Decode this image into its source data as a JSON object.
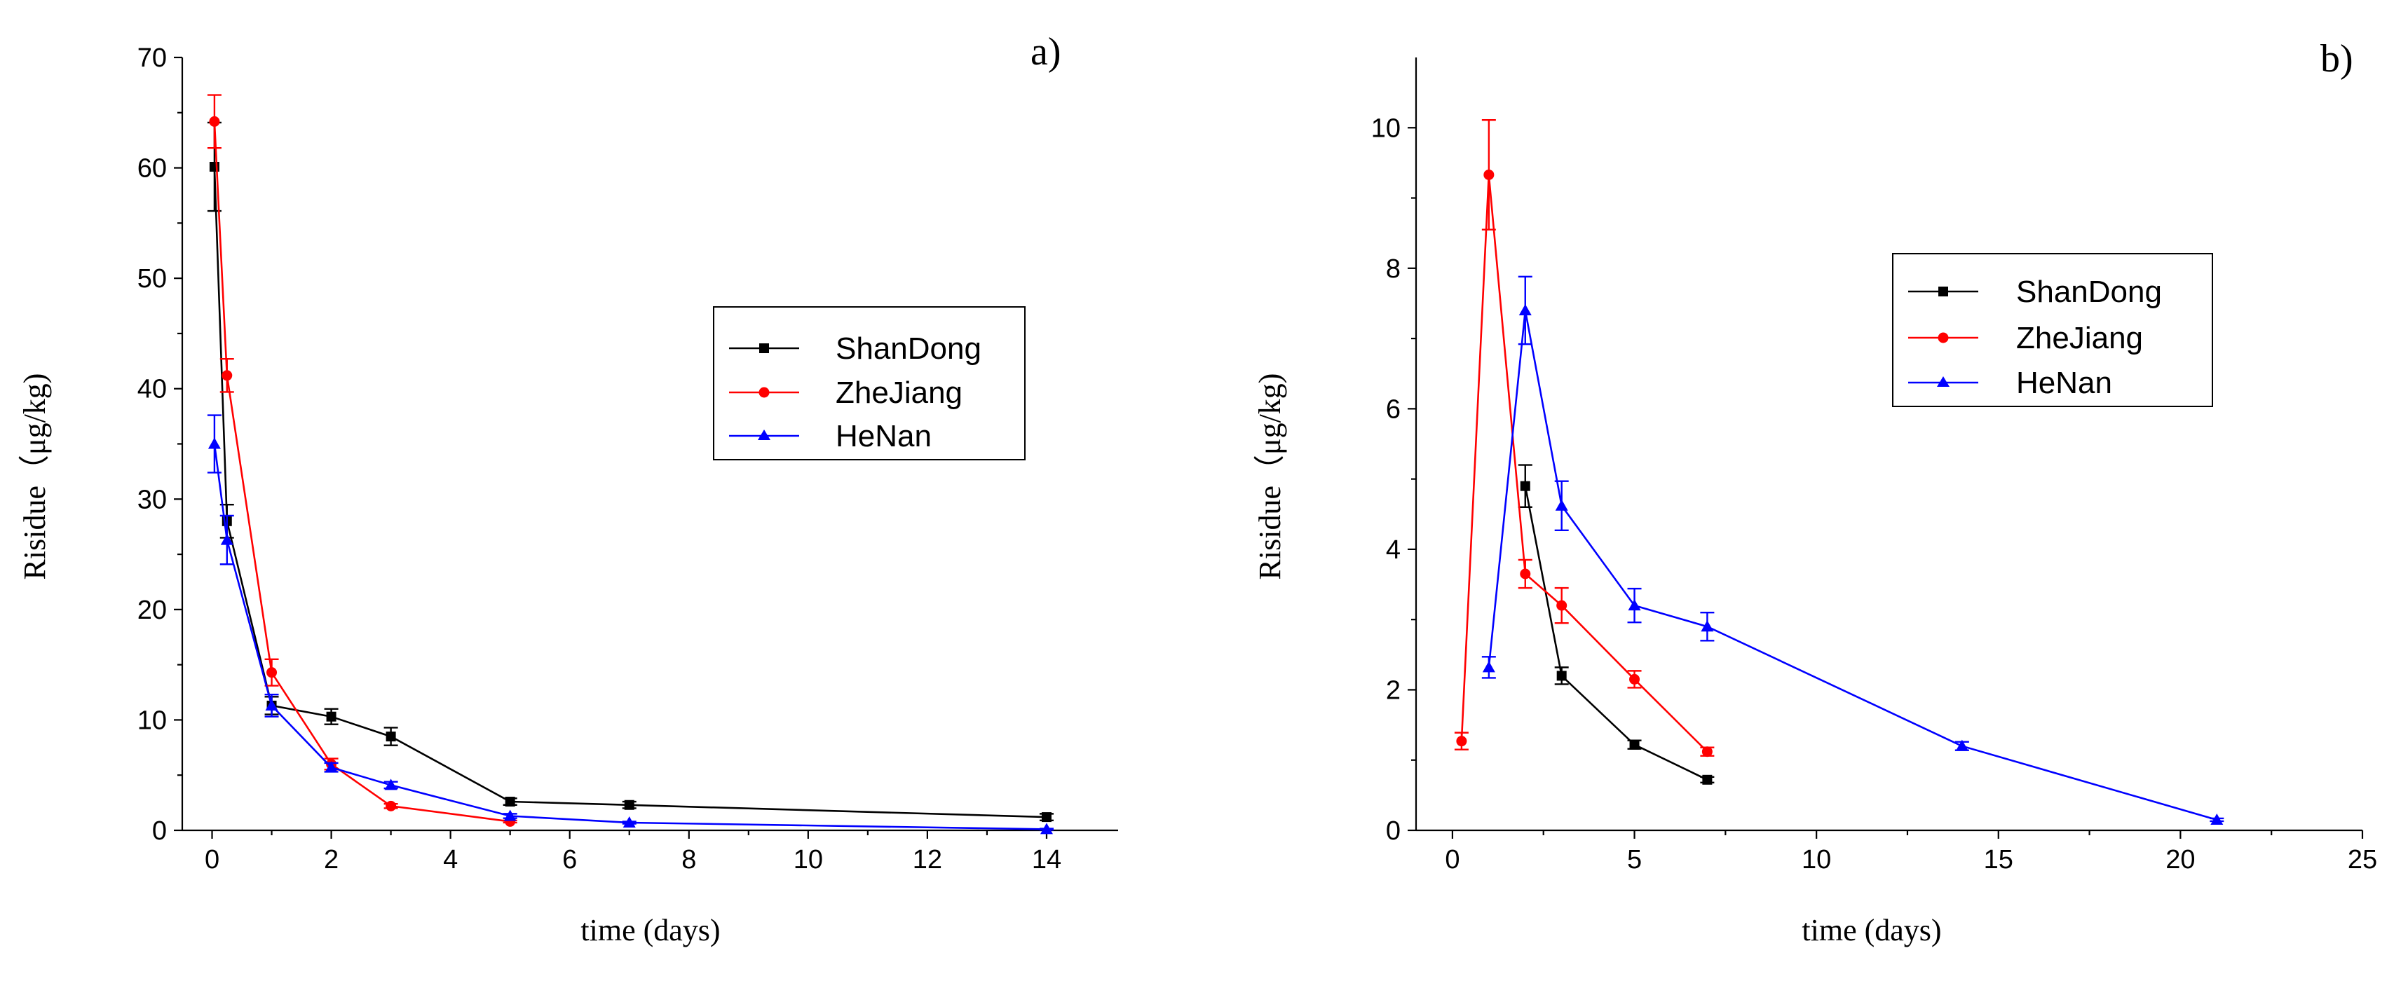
{
  "chart_data": [
    {
      "panel": "a)",
      "type": "line",
      "xlabel": "time (days)",
      "ylabel": "Risidue（μg/kg)",
      "xlim": [
        -0.5,
        15.2
      ],
      "ylim": [
        0,
        70
      ],
      "xticks": [
        0,
        2,
        4,
        6,
        8,
        10,
        12,
        14
      ],
      "yticks": [
        0,
        10,
        20,
        30,
        40,
        50,
        60,
        70
      ],
      "legend_position": "center-right",
      "series": [
        {
          "name": "ShanDong",
          "color": "#000000",
          "marker": "square",
          "x": [
            0.04,
            0.25,
            1,
            2,
            3,
            5,
            7,
            14
          ],
          "y": [
            60.1,
            28.0,
            11.3,
            10.3,
            8.5,
            2.6,
            2.3,
            1.2
          ],
          "err": [
            4.0,
            1.5,
            0.8,
            0.7,
            0.8,
            0.3,
            0.3,
            0.3
          ]
        },
        {
          "name": "ZheJiang",
          "color": "#ff0000",
          "marker": "circle",
          "x": [
            0.04,
            0.25,
            1,
            2,
            3,
            5
          ],
          "y": [
            64.2,
            41.2,
            14.3,
            6.0,
            2.2,
            0.8
          ],
          "err": [
            2.4,
            1.5,
            1.2,
            0.5,
            0.2,
            0.1
          ]
        },
        {
          "name": "HeNan",
          "color": "#0000ff",
          "marker": "triangle",
          "x": [
            0.04,
            0.25,
            1,
            2,
            3,
            5,
            7,
            14
          ],
          "y": [
            35.0,
            26.3,
            11.3,
            5.7,
            4.1,
            1.3,
            0.7,
            0.1
          ],
          "err": [
            2.6,
            2.2,
            1.0,
            0.4,
            0.3,
            0.2,
            0.1,
            0.05
          ]
        }
      ]
    },
    {
      "panel": "b)",
      "type": "line",
      "xlabel": "time (days)",
      "ylabel": "Risidue（μg/kg)",
      "xlim": [
        -1,
        25
      ],
      "ylim": [
        0,
        11
      ],
      "xticks": [
        0,
        5,
        10,
        15,
        20,
        25
      ],
      "yticks": [
        0,
        2,
        4,
        6,
        8,
        10
      ],
      "legend_position": "top-right",
      "series": [
        {
          "name": "ShanDong",
          "color": "#000000",
          "marker": "square",
          "x": [
            2,
            3,
            5,
            7
          ],
          "y": [
            4.9,
            2.2,
            1.22,
            0.72
          ],
          "err": [
            0.3,
            0.12,
            0.06,
            0.04
          ]
        },
        {
          "name": "ZheJiang",
          "color": "#ff0000",
          "marker": "circle",
          "x": [
            0.25,
            1,
            2,
            3,
            5,
            7
          ],
          "y": [
            1.27,
            9.33,
            3.65,
            3.2,
            2.15,
            1.12
          ],
          "err": [
            0.12,
            0.78,
            0.2,
            0.25,
            0.12,
            0.06
          ]
        },
        {
          "name": "HeNan",
          "color": "#0000ff",
          "marker": "triangle",
          "x": [
            1,
            2,
            3,
            5,
            7,
            14,
            21
          ],
          "y": [
            2.32,
            7.4,
            4.62,
            3.2,
            2.9,
            1.2,
            0.15
          ],
          "err": [
            0.15,
            0.48,
            0.35,
            0.24,
            0.2,
            0.06,
            0.02
          ]
        }
      ]
    }
  ]
}
